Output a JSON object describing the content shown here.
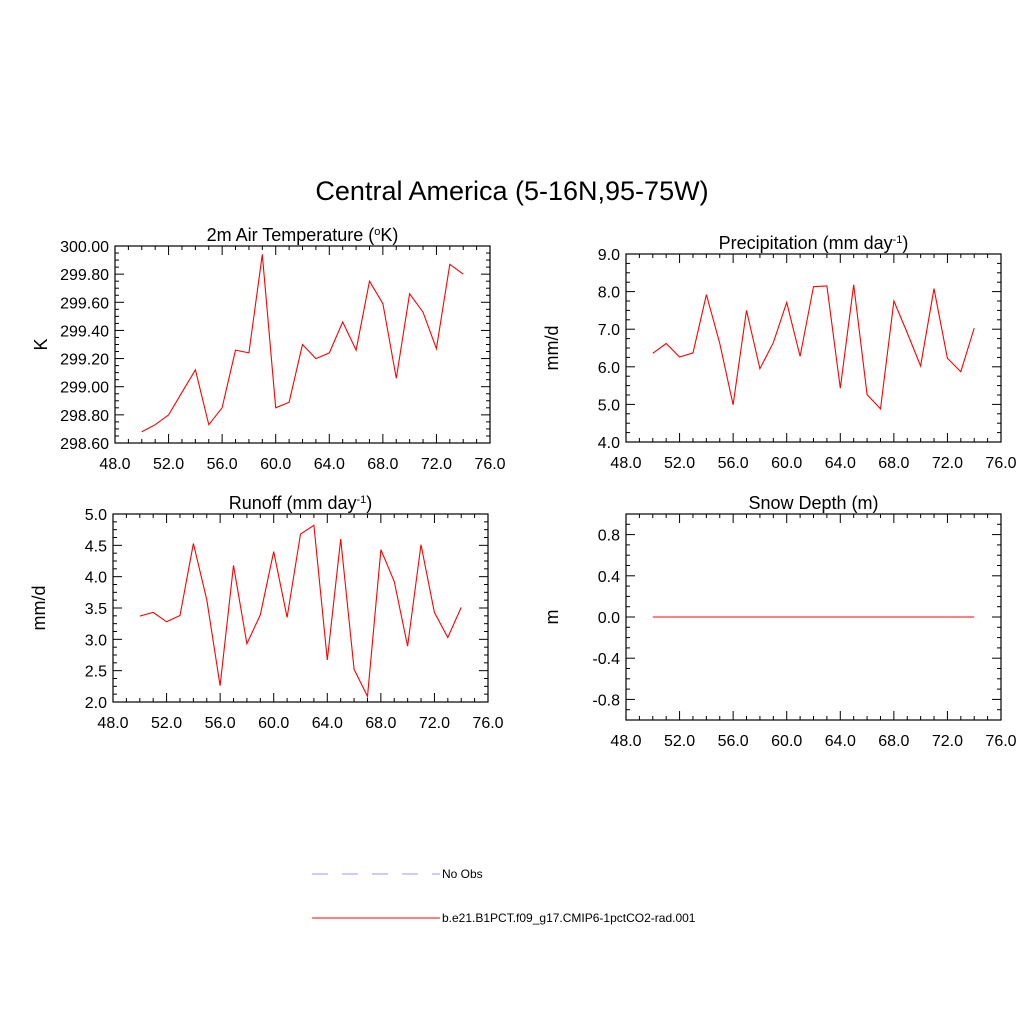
{
  "title": "Central America (5-16N,95-75W)",
  "series_color": "#ff0000",
  "obs_color": "#9999ff",
  "legend": {
    "obs_label": "No Obs",
    "model_label": "b.e21.B1PCT.f09_g17.CMIP6-1pctCO2-rad.001"
  },
  "chart_data": [
    {
      "type": "line",
      "title": "2m Air Temperature (°K)",
      "title_base": "2m Air Temperature (",
      "title_sup": "o",
      "title_end": "K)",
      "ylabel": "K",
      "xlim": [
        48,
        76
      ],
      "ylim": [
        298.6,
        300.0
      ],
      "xticks": [
        48,
        52,
        56,
        60,
        64,
        68,
        72,
        76
      ],
      "xtick_labels": [
        "48.0",
        "52.0",
        "56.0",
        "60.0",
        "64.0",
        "68.0",
        "72.0",
        "76.0"
      ],
      "yticks": [
        298.6,
        298.8,
        299.0,
        299.2,
        299.4,
        299.6,
        299.8,
        300.0
      ],
      "ytick_labels": [
        "298.60",
        "298.80",
        "299.00",
        "299.20",
        "299.40",
        "299.60",
        "299.80",
        "300.00"
      ],
      "series": [
        {
          "x": [
            50,
            51,
            52,
            53,
            54,
            55,
            56,
            57,
            58,
            59,
            60,
            61,
            62,
            63,
            64,
            65,
            66,
            67,
            68,
            69,
            70,
            71,
            72,
            73,
            74
          ],
          "values": [
            298.68,
            298.73,
            298.8,
            298.96,
            299.12,
            298.73,
            298.85,
            299.26,
            299.24,
            299.94,
            298.85,
            298.89,
            299.3,
            299.2,
            299.24,
            299.46,
            299.26,
            299.75,
            299.59,
            299.06,
            299.66,
            299.53,
            299.27,
            299.87,
            299.8
          ]
        }
      ]
    },
    {
      "type": "line",
      "title": "Precipitation (mm day-1)",
      "title_base": "Precipitation (mm day",
      "title_sup": "-1",
      "title_end": ")",
      "ylabel": "mm/d",
      "xlim": [
        48,
        76
      ],
      "ylim": [
        4.0,
        9.0
      ],
      "xticks": [
        48,
        52,
        56,
        60,
        64,
        68,
        72,
        76
      ],
      "xtick_labels": [
        "48.0",
        "52.0",
        "56.0",
        "60.0",
        "64.0",
        "68.0",
        "72.0",
        "76.0"
      ],
      "yticks": [
        4,
        5,
        6,
        7,
        8,
        9
      ],
      "ytick_labels": [
        "4.0",
        "5.0",
        "6.0",
        "7.0",
        "8.0",
        "9.0"
      ],
      "series": [
        {
          "x": [
            50,
            51,
            52,
            53,
            54,
            55,
            56,
            57,
            58,
            59,
            60,
            61,
            62,
            63,
            64,
            65,
            66,
            67,
            68,
            69,
            70,
            71,
            72,
            73,
            74
          ],
          "values": [
            6.36,
            6.62,
            6.26,
            6.37,
            7.92,
            6.62,
            4.99,
            7.5,
            5.95,
            6.64,
            7.71,
            6.28,
            8.13,
            8.15,
            5.43,
            8.18,
            5.26,
            4.88,
            7.75,
            6.9,
            6.02,
            8.08,
            6.23,
            5.87,
            7.03
          ]
        }
      ]
    },
    {
      "type": "line",
      "title": "Runoff (mm day-1)",
      "title_base": "Runoff (mm day",
      "title_sup": "-1",
      "title_end": ")",
      "ylabel": "mm/d",
      "xlim": [
        48,
        76
      ],
      "ylim": [
        2.0,
        5.0
      ],
      "xticks": [
        48,
        52,
        56,
        60,
        64,
        68,
        72,
        76
      ],
      "xtick_labels": [
        "48.0",
        "52.0",
        "56.0",
        "60.0",
        "64.0",
        "68.0",
        "72.0",
        "76.0"
      ],
      "yticks": [
        2.0,
        2.5,
        3.0,
        3.5,
        4.0,
        4.5,
        5.0
      ],
      "ytick_labels": [
        "2.0",
        "2.5",
        "3.0",
        "3.5",
        "4.0",
        "4.5",
        "5.0"
      ],
      "series": [
        {
          "x": [
            50,
            51,
            52,
            53,
            54,
            55,
            56,
            57,
            58,
            59,
            60,
            61,
            62,
            63,
            64,
            65,
            66,
            67,
            68,
            69,
            70,
            71,
            72,
            73,
            74
          ],
          "values": [
            3.37,
            3.43,
            3.28,
            3.38,
            4.53,
            3.63,
            2.26,
            4.18,
            2.93,
            3.39,
            4.4,
            3.35,
            4.68,
            4.82,
            2.67,
            4.6,
            2.52,
            2.09,
            4.43,
            3.92,
            2.89,
            4.51,
            3.43,
            3.03,
            3.51
          ]
        }
      ]
    },
    {
      "type": "line",
      "title": "Snow Depth (m)",
      "title_base": "Snow Depth (m)",
      "title_sup": "",
      "title_end": "",
      "ylabel": "m",
      "xlim": [
        48,
        76
      ],
      "ylim": [
        -1.0,
        1.0
      ],
      "xticks": [
        48,
        52,
        56,
        60,
        64,
        68,
        72,
        76
      ],
      "xtick_labels": [
        "48.0",
        "52.0",
        "56.0",
        "60.0",
        "64.0",
        "68.0",
        "72.0",
        "76.0"
      ],
      "yticks": [
        -0.8,
        -0.4,
        0.0,
        0.4,
        0.8
      ],
      "ytick_labels": [
        "-0.8",
        "-0.4",
        "0.0",
        "0.4",
        "0.8"
      ],
      "series": [
        {
          "x": [
            50,
            74
          ],
          "values": [
            0.0,
            0.0
          ]
        }
      ]
    }
  ]
}
